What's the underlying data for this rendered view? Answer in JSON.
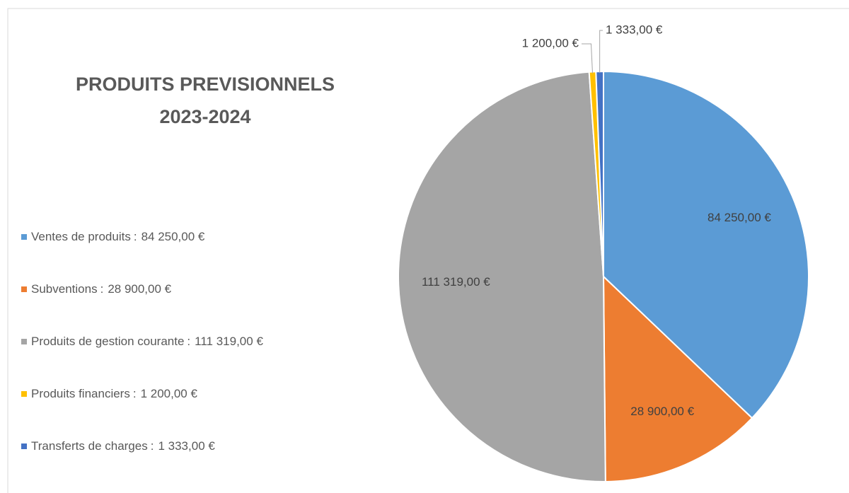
{
  "chart_data": {
    "type": "pie",
    "title": "PRODUITS PREVISIONNELS 2023-2024",
    "categories": [
      "Ventes de produits",
      "Subventions",
      "Produits de gestion courante",
      "Produits financiers",
      "Transferts de charges"
    ],
    "values": [
      84250,
      28900,
      111319,
      1200,
      1333
    ],
    "value_labels": [
      "84 250,00 €",
      "28 900,00 €",
      "111 319,00 €",
      "1 200,00 €",
      "1 333,00 €"
    ],
    "colors": [
      "#5b9bd5",
      "#ed7d31",
      "#a5a5a5",
      "#ffc000",
      "#4472c4"
    ],
    "legend_separator": ":",
    "legend": "left"
  }
}
